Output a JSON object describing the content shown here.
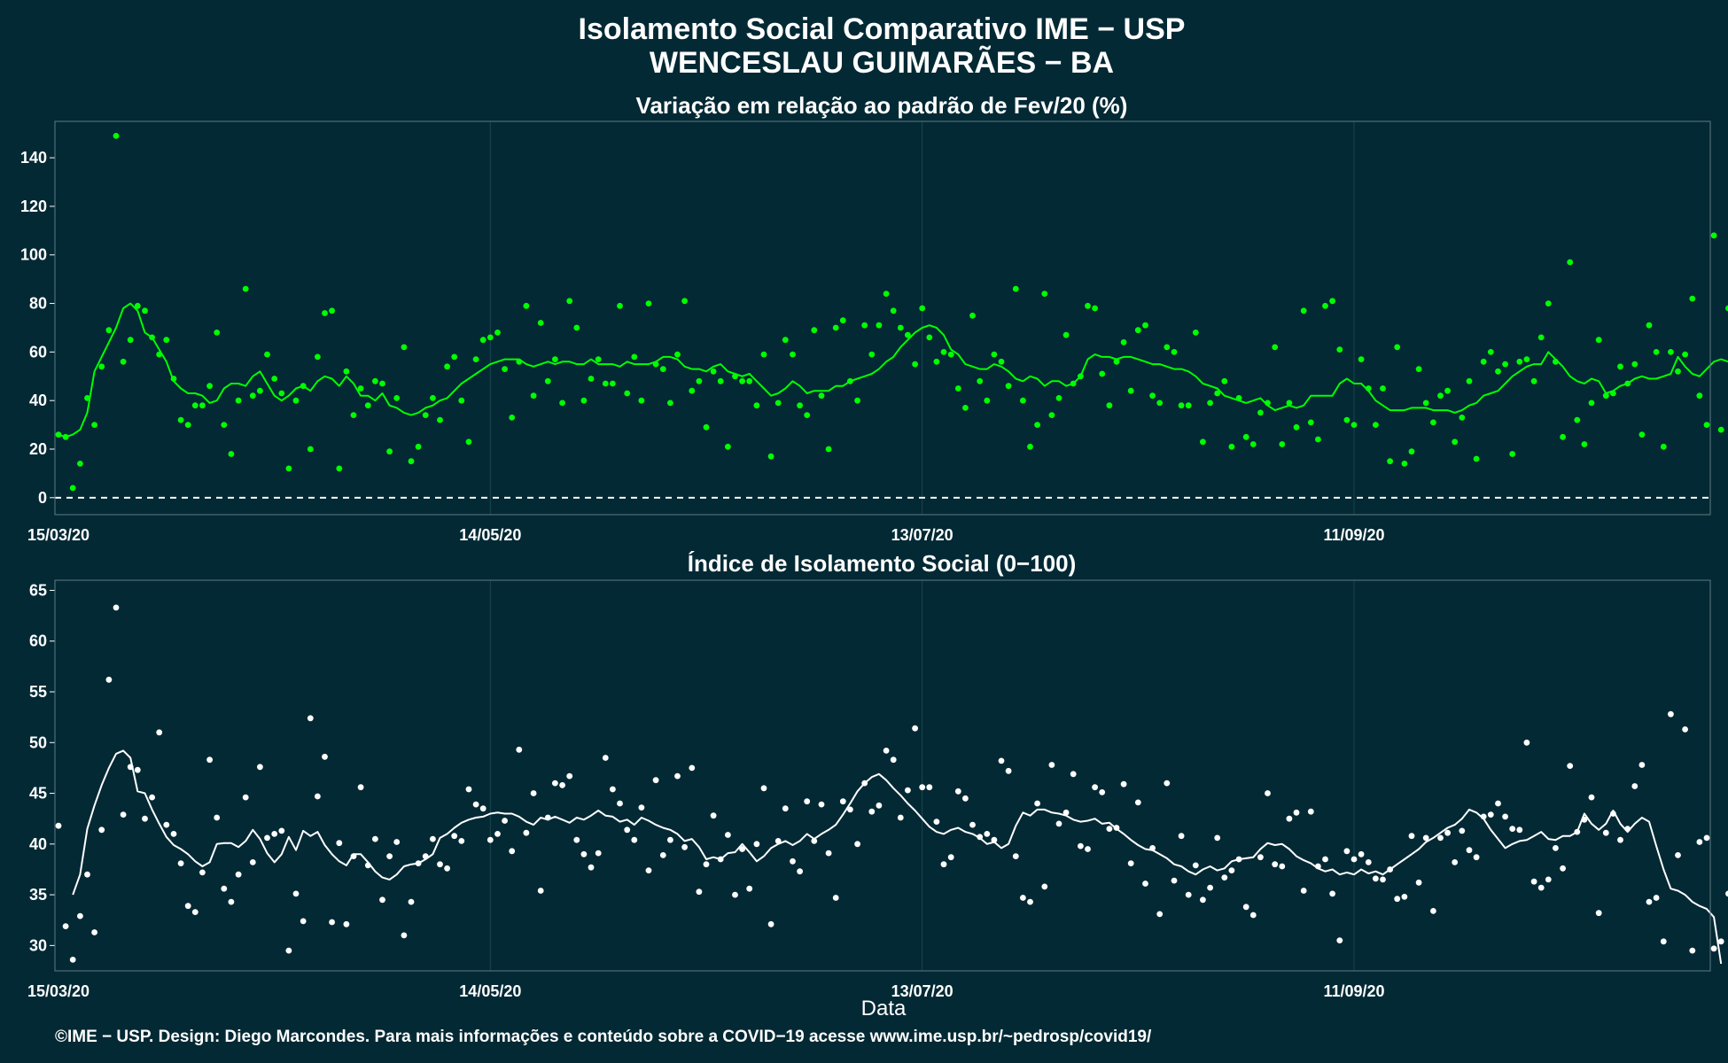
{
  "header": {
    "title_line1": "Isolamento Social Comparativo IME − USP",
    "title_line2": "WENCESLAU GUIMARÃES − BA"
  },
  "footer": {
    "credit": "©IME − USP. Design: Diego Marcondes. Para mais informações e conteúdo sobre a COVID−19 acesse www.ime.usp.br/~pedrosp/covid19/"
  },
  "colors": {
    "background": "#032934",
    "panel1_series": "#00ff00",
    "panel2_series": "#ffffff"
  },
  "chart_data": [
    {
      "type": "scatter",
      "title": "Variação em relação ao padrão de Fev/20 (%)",
      "xlabel": "",
      "ylabel": "",
      "x_start": "15/03/20",
      "x_end": "30/10/20",
      "ylim": [
        -7,
        155
      ],
      "yticks": [
        0,
        20,
        40,
        60,
        80,
        100,
        120,
        140
      ],
      "xticks": [
        "15/03/20",
        "14/05/20",
        "13/07/20",
        "11/09/20"
      ],
      "reference_line": 0,
      "grid": true,
      "series": [
        {
          "kind": "points",
          "values": [
            26,
            25,
            4,
            14,
            41,
            30,
            54,
            69,
            149,
            56,
            65,
            79,
            77,
            66,
            59,
            65,
            49,
            32,
            30,
            38,
            38,
            46,
            68,
            30,
            18,
            40,
            86,
            42,
            44,
            59,
            49,
            43,
            12,
            40,
            46,
            20,
            58,
            76,
            77,
            12,
            52,
            34,
            45,
            38,
            48,
            47,
            19,
            41,
            62,
            15,
            21,
            34,
            41,
            32,
            54,
            58,
            40,
            23,
            57,
            65,
            66,
            68,
            53,
            33,
            56,
            79,
            42,
            72,
            48,
            57,
            39,
            81,
            70,
            40,
            49,
            57,
            47,
            47,
            79,
            43,
            58,
            40,
            80,
            55,
            53,
            39,
            59,
            81,
            44,
            48,
            29,
            52,
            48,
            21,
            50,
            48,
            48,
            38,
            59,
            17,
            39,
            65,
            59,
            38,
            34,
            69,
            42,
            20,
            70,
            73,
            48,
            40,
            71,
            59,
            71,
            84,
            77,
            70,
            67,
            55,
            78,
            66,
            56,
            60,
            59,
            45,
            37,
            75,
            48,
            40,
            59,
            56,
            46,
            86,
            40,
            21,
            30,
            84,
            34,
            41,
            67,
            47,
            50,
            79,
            78,
            51,
            38,
            56,
            64,
            44,
            69,
            71,
            42,
            39,
            62,
            60,
            38,
            38,
            68,
            23,
            39,
            43,
            48,
            21,
            41,
            25,
            22,
            35,
            39,
            62,
            22,
            39,
            29,
            77,
            31,
            24,
            79,
            81,
            61,
            32,
            30,
            57,
            45,
            30,
            45,
            15,
            62,
            14,
            19,
            53,
            39,
            31,
            42,
            44,
            23,
            33,
            48,
            16,
            56,
            60,
            52,
            55,
            18,
            56,
            57,
            48,
            66,
            80,
            56,
            25,
            97,
            32,
            22,
            39,
            65,
            42,
            43,
            54,
            47,
            55,
            26,
            71,
            60,
            21,
            60,
            52,
            59,
            82,
            42,
            30,
            108,
            28,
            78,
            16,
            68,
            51,
            20,
            16,
            16,
            46,
            17,
            31,
            26,
            49
          ]
        },
        {
          "kind": "moving_average",
          "start_index": 0,
          "values": [
            26,
            25,
            26,
            28,
            35,
            52,
            58,
            64,
            70,
            78,
            80,
            77,
            68,
            66,
            61,
            56,
            48,
            45,
            43,
            43,
            42,
            39,
            40,
            45,
            47,
            47,
            46,
            50,
            52,
            47,
            42,
            40,
            42,
            45,
            46,
            44,
            48,
            50,
            49,
            46,
            50,
            47,
            42,
            42,
            40,
            43,
            38,
            37,
            35,
            34,
            35,
            37,
            38,
            40,
            41,
            44,
            47,
            49,
            51,
            53,
            55,
            56,
            57,
            57,
            57,
            55,
            54,
            55,
            56,
            55,
            56,
            56,
            55,
            55,
            57,
            55,
            55,
            55,
            54,
            56,
            55,
            55,
            55,
            56,
            58,
            58,
            57,
            54,
            53,
            53,
            52,
            54,
            55,
            52,
            51,
            50,
            51,
            48,
            45,
            42,
            43,
            45,
            48,
            46,
            43,
            44,
            44,
            44,
            46,
            46,
            48,
            49,
            50,
            51,
            53,
            56,
            58,
            62,
            65,
            68,
            70,
            71,
            70,
            67,
            61,
            59,
            55,
            54,
            53,
            53,
            55,
            54,
            52,
            49,
            48,
            50,
            49,
            46,
            48,
            48,
            46,
            47,
            50,
            57,
            59,
            58,
            58,
            57,
            58,
            58,
            57,
            56,
            55,
            55,
            54,
            53,
            53,
            52,
            50,
            47,
            46,
            45,
            42,
            41,
            40,
            39,
            40,
            41,
            38,
            36,
            37,
            38,
            37,
            38,
            42,
            42,
            42,
            42,
            47,
            49,
            47,
            47,
            44,
            40,
            38,
            36,
            36,
            36,
            37,
            37,
            37,
            36,
            36,
            36,
            35,
            36,
            38,
            39,
            42,
            43,
            44,
            47,
            50,
            52,
            54,
            55,
            55,
            60,
            57,
            54,
            50,
            48,
            47,
            49,
            48,
            43,
            44,
            46,
            47,
            49,
            50,
            49,
            49,
            50,
            51,
            58,
            54,
            51,
            50,
            53,
            56,
            57,
            56,
            58,
            51,
            53,
            56,
            55,
            43,
            38,
            34,
            34,
            31,
            28,
            25,
            29
          ]
        }
      ]
    },
    {
      "type": "scatter",
      "title": "Índice de Isolamento Social (0−100)",
      "xlabel": "Data",
      "ylabel": "",
      "x_start": "15/03/20",
      "x_end": "30/10/20",
      "ylim": [
        27.5,
        66
      ],
      "yticks": [
        30,
        35,
        40,
        45,
        50,
        55,
        60,
        65
      ],
      "xticks": [
        "15/03/20",
        "14/05/20",
        "13/07/20",
        "11/09/20"
      ],
      "grid": true,
      "series": [
        {
          "kind": "points",
          "values": [
            41.8,
            31.9,
            28.6,
            32.9,
            37.0,
            31.3,
            41.4,
            56.2,
            63.3,
            42.9,
            47.6,
            47.3,
            42.5,
            44.6,
            51.0,
            41.9,
            41.0,
            38.1,
            33.9,
            33.3,
            37.2,
            48.3,
            42.6,
            35.6,
            34.3,
            37.0,
            44.6,
            38.2,
            47.6,
            40.6,
            41.0,
            41.3,
            29.5,
            35.1,
            32.4,
            52.4,
            44.7,
            48.6,
            32.3,
            40.1,
            32.1,
            38.8,
            45.6,
            37.9,
            40.5,
            34.5,
            38.8,
            40.2,
            31.0,
            34.3,
            38.1,
            38.8,
            40.5,
            38.0,
            37.6,
            40.8,
            40.3,
            45.4,
            43.9,
            43.5,
            40.4,
            41.0,
            42.3,
            39.3,
            49.3,
            41.1,
            45.0,
            35.4,
            42.6,
            46.0,
            45.8,
            46.7,
            40.4,
            39.0,
            37.7,
            39.1,
            48.5,
            45.4,
            44.0,
            41.4,
            40.4,
            43.6,
            37.4,
            46.3,
            38.9,
            40.4,
            46.7,
            39.7,
            47.5,
            35.3,
            38.0,
            42.8,
            38.5,
            40.9,
            35.0,
            39.5,
            35.6,
            40.0,
            45.5,
            32.1,
            40.3,
            43.5,
            38.3,
            37.3,
            44.2,
            40.3,
            43.9,
            39.1,
            34.7,
            44.2,
            43.4,
            40.0,
            46.0,
            43.2,
            43.8,
            49.2,
            48.3,
            42.6,
            45.3,
            51.4,
            45.6,
            45.6,
            42.2,
            38.0,
            38.7,
            45.2,
            44.5,
            41.9,
            40.7,
            41.0,
            40.4,
            48.2,
            47.2,
            38.8,
            34.7,
            34.3,
            44.0,
            35.8,
            47.8,
            42.0,
            43.1,
            46.9,
            39.8,
            39.5,
            45.6,
            45.1,
            41.5,
            41.6,
            45.9,
            38.1,
            44.1,
            36.1,
            39.6,
            33.1,
            46.0,
            36.4,
            40.8,
            35.0,
            37.9,
            34.5,
            35.7,
            40.6,
            36.7,
            37.4,
            38.5,
            33.8,
            33.0,
            38.7,
            45.0,
            38.0,
            37.8,
            42.5,
            43.1,
            35.4,
            43.2,
            37.8,
            38.5,
            35.1,
            30.5,
            39.3,
            38.5,
            39.0,
            38.2,
            36.6,
            36.5,
            37.5,
            34.6,
            34.8,
            40.8,
            36.2,
            40.6,
            33.4,
            40.6,
            41.1,
            38.2,
            41.3,
            39.4,
            38.7,
            42.7,
            42.9,
            44.0,
            42.7,
            41.5,
            41.4,
            50.0,
            36.3,
            35.7,
            36.5,
            39.6,
            37.6,
            47.7,
            41.2,
            42.4,
            44.6,
            33.2,
            41.1,
            43.0,
            40.4,
            41.5,
            45.7,
            47.8,
            34.3,
            34.7,
            30.4,
            52.8,
            38.9,
            51.3,
            29.5,
            40.2,
            40.6,
            29.7,
            30.4,
            35.1,
            31.8,
            37.7,
            33.9,
            38.1
          ]
        },
        {
          "kind": "moving_average",
          "start_index": 2,
          "values": [
            35.0,
            37.0,
            41.5,
            43.8,
            45.8,
            47.5,
            48.9,
            49.2,
            48.5,
            45.2,
            45.0,
            43.4,
            42.0,
            40.7,
            39.9,
            39.5,
            39.0,
            38.3,
            37.8,
            38.2,
            40.0,
            40.1,
            40.1,
            39.7,
            40.3,
            41.4,
            40.5,
            39.1,
            38.2,
            39.0,
            40.7,
            39.4,
            41.3,
            40.8,
            41.2,
            39.9,
            39.0,
            38.3,
            37.9,
            39.0,
            39.0,
            38.2,
            37.3,
            36.7,
            36.5,
            37.0,
            37.8,
            38.0,
            38.1,
            38.5,
            39.0,
            40.6,
            41.0,
            41.6,
            42.1,
            42.4,
            42.6,
            42.7,
            43.0,
            43.1,
            43.0,
            43.0,
            42.7,
            42.2,
            41.9,
            42.6,
            42.4,
            42.7,
            42.4,
            42.1,
            42.6,
            42.4,
            42.8,
            43.3,
            42.8,
            42.7,
            42.2,
            42.4,
            41.9,
            42.6,
            42.3,
            41.9,
            41.6,
            41.4,
            41.0,
            40.3,
            40.5,
            39.7,
            38.5,
            38.7,
            38.5,
            39.1,
            39.2,
            40.0,
            39.2,
            38.3,
            38.8,
            39.6,
            40.0,
            40.3,
            39.9,
            40.3,
            41.0,
            40.5,
            41.0,
            41.4,
            41.9,
            42.9,
            44.0,
            45.2,
            46.0,
            46.6,
            46.9,
            46.3,
            45.5,
            44.8,
            44.0,
            43.3,
            42.5,
            41.7,
            41.2,
            41.0,
            41.4,
            41.6,
            41.2,
            41.0,
            40.6,
            40.0,
            40.2,
            39.6,
            40.0,
            41.8,
            43.1,
            42.8,
            43.4,
            43.4,
            43.1,
            43.0,
            42.8,
            42.4,
            42.2,
            42.3,
            42.5,
            42.0,
            42.1,
            41.5,
            41.0,
            40.4,
            39.9,
            39.5,
            39.4,
            39.0,
            38.6,
            38.0,
            37.8,
            37.3,
            37.0,
            37.5,
            37.8,
            37.4,
            37.6,
            38.3,
            38.5,
            38.6,
            38.7,
            39.5,
            40.1,
            39.9,
            40.0,
            39.5,
            38.8,
            38.4,
            38.1,
            37.6,
            37.3,
            37.5,
            37.0,
            37.2,
            37.0,
            37.5,
            37.1,
            37.3,
            37.0,
            37.5,
            38.0,
            38.5,
            39.0,
            39.5,
            40.2,
            40.6,
            41.1,
            41.6,
            41.9,
            42.5,
            43.4,
            43.1,
            42.5,
            41.4,
            40.5,
            39.6,
            40.0,
            40.3,
            40.4,
            40.8,
            41.2,
            40.5,
            40.4,
            40.8,
            40.8,
            41.2,
            43.0,
            42.0,
            41.4,
            42.0,
            43.3,
            42.0,
            41.2,
            42.0,
            42.6,
            42.2,
            39.8,
            37.5,
            35.6,
            35.4,
            35.0,
            34.3,
            33.9,
            33.6,
            32.8,
            28.2
          ]
        }
      ]
    }
  ]
}
